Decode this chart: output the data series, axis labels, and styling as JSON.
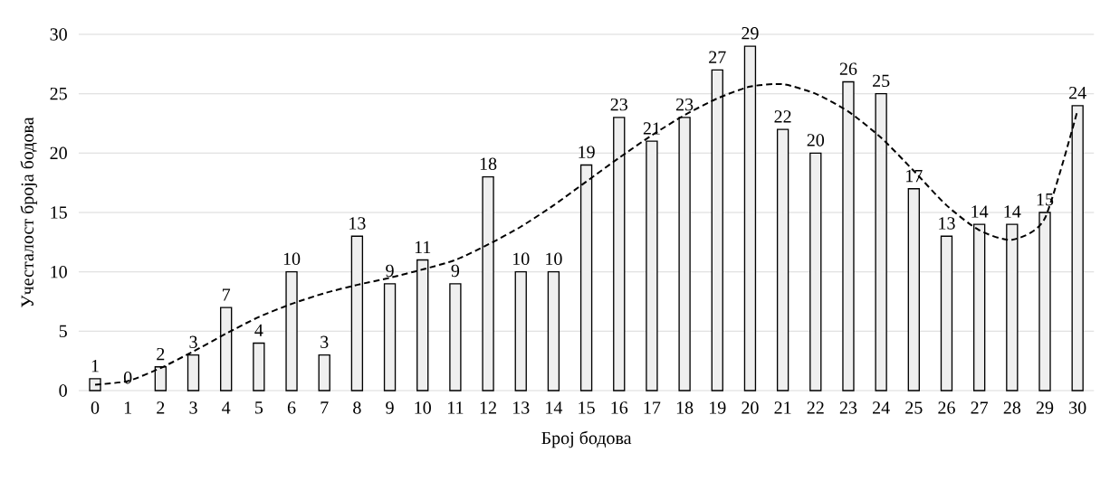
{
  "chart_data": {
    "type": "bar",
    "xlabel": "Број бодова",
    "ylabel": "Учесталост броја бодова",
    "categories": [
      "0",
      "1",
      "2",
      "3",
      "4",
      "5",
      "6",
      "7",
      "8",
      "9",
      "10",
      "11",
      "12",
      "13",
      "14",
      "15",
      "16",
      "17",
      "18",
      "19",
      "20",
      "21",
      "22",
      "23",
      "24",
      "25",
      "26",
      "27",
      "28",
      "29",
      "30"
    ],
    "series": [
      {
        "color": "#efefef",
        "values": [
          1,
          0,
          2,
          3,
          7,
          4,
          10,
          3,
          13,
          9,
          11,
          9,
          18,
          10,
          10,
          19,
          23,
          21,
          23,
          27,
          29,
          22,
          20,
          26,
          25,
          17,
          13,
          14,
          14,
          15,
          24
        ],
        "value_labels": [
          "1",
          "0",
          "2",
          "3",
          "7",
          "4",
          "10",
          "3",
          "13",
          "9",
          "11",
          "9",
          "18",
          "10",
          "10",
          "19",
          "23",
          "21",
          "23",
          "27",
          "29",
          "22",
          "20",
          "26",
          "25",
          "17",
          "13",
          "14",
          "14",
          "15",
          "24"
        ]
      },
      {
        "type": "line",
        "color": "#000000",
        "line_style": "dashed",
        "values": [
          0.5,
          0.8,
          1.9,
          3.3,
          4.8,
          6.2,
          7.3,
          8.2,
          8.9,
          9.5,
          10.2,
          11.0,
          12.3,
          13.8,
          15.6,
          17.6,
          19.6,
          21.5,
          23.2,
          24.6,
          25.6,
          25.8,
          25.0,
          23.5,
          21.3,
          18.5,
          15.6,
          13.5,
          12.7,
          14.5,
          23.6
        ]
      }
    ],
    "ylim": [
      0,
      30
    ],
    "yticks": [
      0,
      5,
      10,
      15,
      20,
      25,
      30
    ],
    "grid": "y",
    "marker": "none"
  }
}
